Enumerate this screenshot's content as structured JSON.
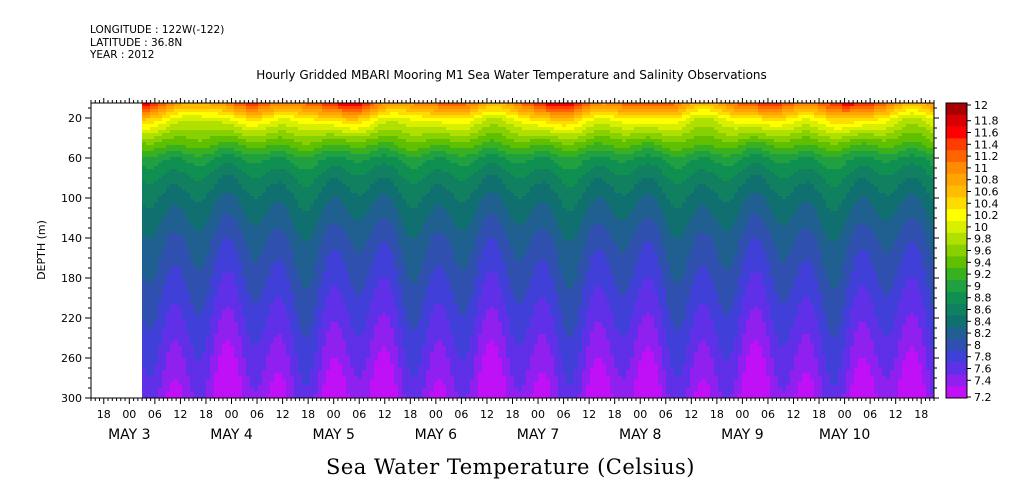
{
  "header": {
    "longitude": "LONGITUDE : 122W(-122)",
    "latitude": "LATITUDE : 36.8N",
    "year": "YEAR : 2012"
  },
  "chart_data": {
    "type": "heatmap",
    "title": "Hourly Gridded MBARI Mooring M1 Sea Water Temperature and Salinity Observations",
    "xlabel": "Sea Water Temperature (Celsius)",
    "ylabel": "DEPTH (m)",
    "ylim": [
      300,
      5
    ],
    "yticks": [
      20,
      60,
      100,
      140,
      180,
      220,
      260,
      300
    ],
    "x_axis": {
      "start": "May 2 15:00",
      "end": "May 10 21:00",
      "hour_ticks": [
        {
          "day": 2,
          "hour": 18,
          "label": "18"
        },
        {
          "day": 3,
          "hour": 0,
          "label": "00"
        },
        {
          "day": 3,
          "hour": 6,
          "label": "06"
        },
        {
          "day": 3,
          "hour": 12,
          "label": "12"
        },
        {
          "day": 3,
          "hour": 18,
          "label": "18"
        },
        {
          "day": 4,
          "hour": 0,
          "label": "00"
        },
        {
          "day": 4,
          "hour": 6,
          "label": "06"
        },
        {
          "day": 4,
          "hour": 12,
          "label": "12"
        },
        {
          "day": 4,
          "hour": 18,
          "label": "18"
        },
        {
          "day": 5,
          "hour": 0,
          "label": "00"
        },
        {
          "day": 5,
          "hour": 6,
          "label": "06"
        },
        {
          "day": 5,
          "hour": 12,
          "label": "12"
        },
        {
          "day": 5,
          "hour": 18,
          "label": "18"
        },
        {
          "day": 6,
          "hour": 0,
          "label": "00"
        },
        {
          "day": 6,
          "hour": 6,
          "label": "06"
        },
        {
          "day": 6,
          "hour": 12,
          "label": "12"
        },
        {
          "day": 6,
          "hour": 18,
          "label": "18"
        },
        {
          "day": 7,
          "hour": 0,
          "label": "00"
        },
        {
          "day": 7,
          "hour": 6,
          "label": "06"
        },
        {
          "day": 7,
          "hour": 12,
          "label": "12"
        },
        {
          "day": 7,
          "hour": 18,
          "label": "18"
        },
        {
          "day": 8,
          "hour": 0,
          "label": "00"
        },
        {
          "day": 8,
          "hour": 6,
          "label": "06"
        },
        {
          "day": 8,
          "hour": 12,
          "label": "12"
        },
        {
          "day": 8,
          "hour": 18,
          "label": "18"
        },
        {
          "day": 9,
          "hour": 0,
          "label": "00"
        },
        {
          "day": 9,
          "hour": 6,
          "label": "06"
        },
        {
          "day": 9,
          "hour": 12,
          "label": "12"
        },
        {
          "day": 9,
          "hour": 18,
          "label": "18"
        },
        {
          "day": 10,
          "hour": 0,
          "label": "00"
        },
        {
          "day": 10,
          "hour": 6,
          "label": "06"
        },
        {
          "day": 10,
          "hour": 12,
          "label": "12"
        },
        {
          "day": 10,
          "hour": 18,
          "label": "18"
        }
      ],
      "day_labels": [
        {
          "day": 3,
          "label": "MAY  3"
        },
        {
          "day": 4,
          "label": "MAY  4"
        },
        {
          "day": 5,
          "label": "MAY  5"
        },
        {
          "day": 6,
          "label": "MAY  6"
        },
        {
          "day": 7,
          "label": "MAY  7"
        },
        {
          "day": 8,
          "label": "MAY  8"
        },
        {
          "day": 9,
          "label": "MAY  9"
        },
        {
          "day": 10,
          "label": "MAY 10"
        }
      ],
      "data_start": "May 3 03:00"
    },
    "colorbar": {
      "min": 7.2,
      "max": 12,
      "levels": [
        "12",
        "11.8",
        "11.6",
        "11.4",
        "11.2",
        "11",
        "10.8",
        "10.6",
        "10.4",
        "10.2",
        "10",
        "9.8",
        "9.6",
        "9.4",
        "9.2",
        "9",
        "8.8",
        "8.6",
        "8.4",
        "8.2",
        "8",
        "7.8",
        "7.6",
        "7.4",
        "7.2"
      ],
      "colors": [
        "#a80000",
        "#d80000",
        "#ff0000",
        "#ff3c00",
        "#ff6400",
        "#ff8c00",
        "#ffa400",
        "#ffbc00",
        "#ffdc00",
        "#ffff00",
        "#d8f000",
        "#b0e000",
        "#88d000",
        "#60c000",
        "#38b020",
        "#20a040",
        "#109050",
        "#108060",
        "#107070",
        "#206090",
        "#3050b0",
        "#4040d8",
        "#6030e8",
        "#9020f0",
        "#c010f8"
      ]
    },
    "profile": {
      "depths": [
        5,
        20,
        40,
        60,
        80,
        100,
        140,
        180,
        220,
        260,
        300
      ],
      "temperatures": [
        11.2,
        10.3,
        9.6,
        9.0,
        8.7,
        8.5,
        8.2,
        8.0,
        7.8,
        7.6,
        7.4
      ]
    }
  }
}
